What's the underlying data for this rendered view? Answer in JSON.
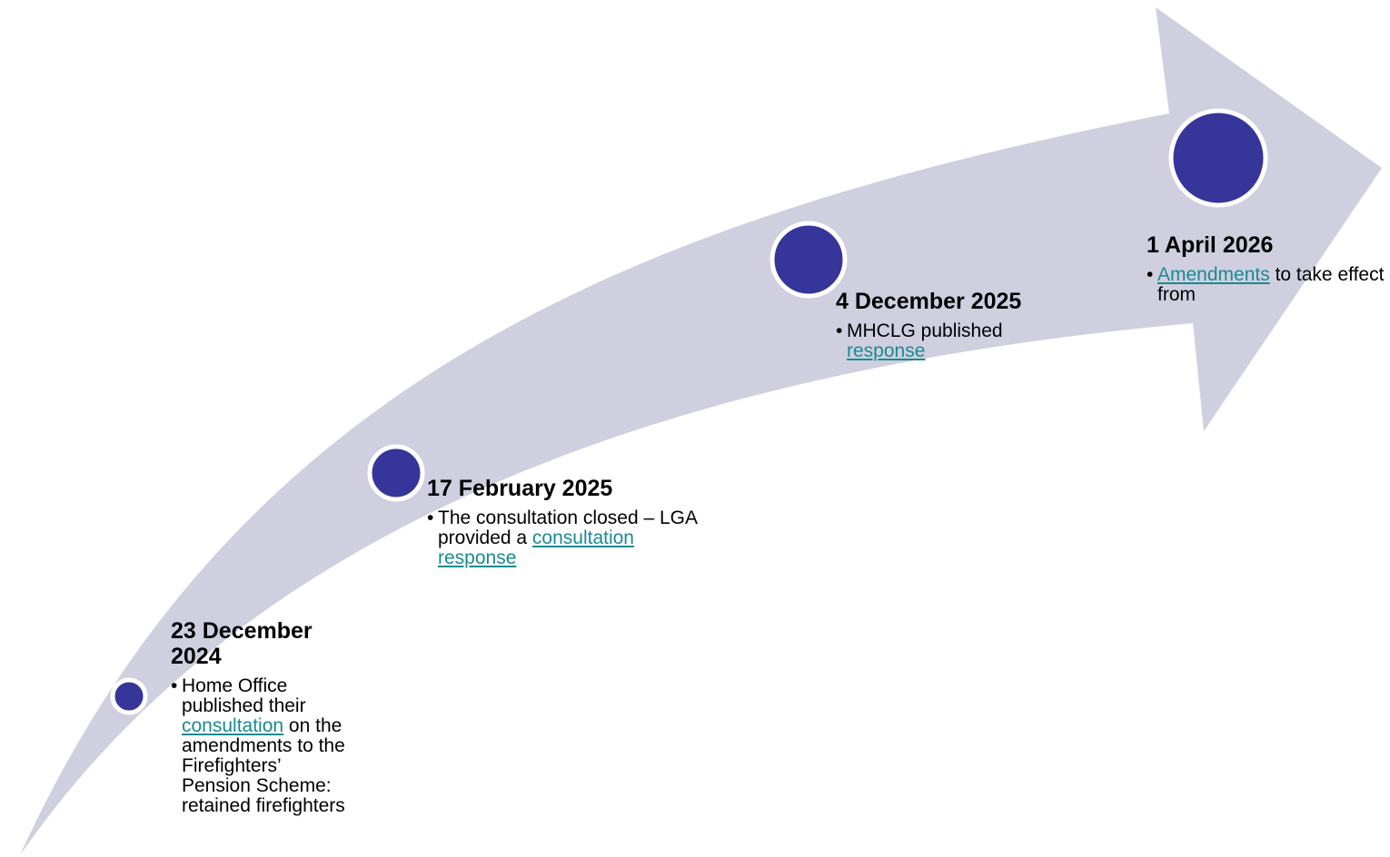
{
  "colors": {
    "arrow_fill": "#cfcfe0",
    "node_fill": "#35359a",
    "node_stroke": "#ffffff",
    "link": "#1a8a92"
  },
  "milestones": [
    {
      "date": "23 December 2024",
      "desc_before": "Home Office published their ",
      "link_text": "consultation",
      "desc_after": " on the amendments to the Firefighters’ Pension Scheme: retained firefighters"
    },
    {
      "date": "17 February 2025",
      "desc_before": "The consultation closed – LGA provided a ",
      "link_text": "consultation response",
      "desc_after": ""
    },
    {
      "date": "4 December 2025",
      "desc_before": "MHCLG published ",
      "link_text": "response",
      "desc_after": ""
    },
    {
      "date": "1 April 2026",
      "desc_before": "",
      "link_text": "Amendments",
      "desc_after": " to take effect from"
    }
  ]
}
